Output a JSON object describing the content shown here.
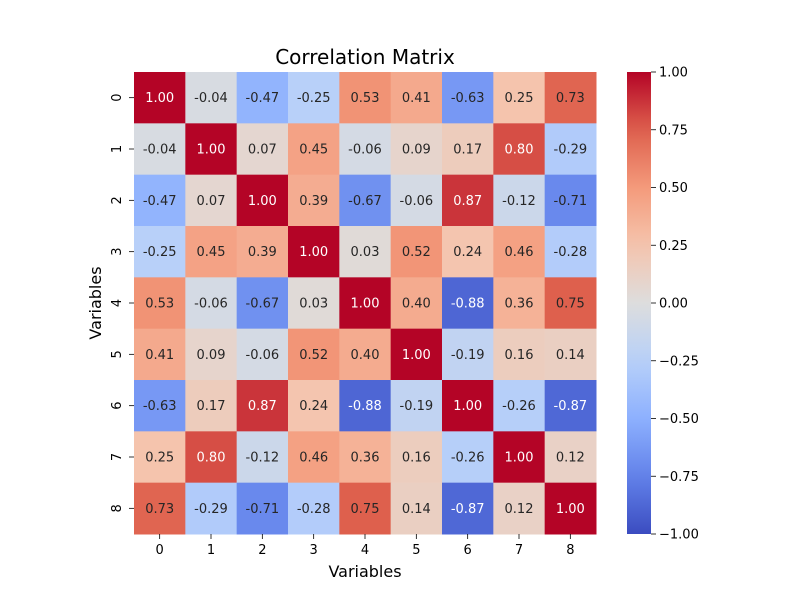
{
  "chart_data": {
    "type": "heatmap",
    "title": "Correlation Matrix",
    "xlabel": "Variables",
    "ylabel": "Variables",
    "x_categories": [
      "0",
      "1",
      "2",
      "3",
      "4",
      "5",
      "6",
      "7",
      "8"
    ],
    "y_categories": [
      "0",
      "1",
      "2",
      "3",
      "4",
      "5",
      "6",
      "7",
      "8"
    ],
    "values": [
      [
        1.0,
        -0.04,
        -0.47,
        -0.25,
        0.53,
        0.41,
        -0.63,
        0.25,
        0.73
      ],
      [
        -0.04,
        1.0,
        0.07,
        0.45,
        -0.06,
        0.09,
        0.17,
        0.8,
        -0.29
      ],
      [
        -0.47,
        0.07,
        1.0,
        0.39,
        -0.67,
        -0.06,
        0.87,
        -0.12,
        -0.71
      ],
      [
        -0.25,
        0.45,
        0.39,
        1.0,
        0.03,
        0.52,
        0.24,
        0.46,
        -0.28
      ],
      [
        0.53,
        -0.06,
        -0.67,
        0.03,
        1.0,
        0.4,
        -0.88,
        0.36,
        0.75
      ],
      [
        0.41,
        0.09,
        -0.06,
        0.52,
        0.4,
        1.0,
        -0.19,
        0.16,
        0.14
      ],
      [
        -0.63,
        0.17,
        0.87,
        0.24,
        -0.88,
        -0.19,
        1.0,
        -0.26,
        -0.87
      ],
      [
        0.25,
        0.8,
        -0.12,
        0.46,
        0.36,
        0.16,
        -0.26,
        1.0,
        0.12
      ],
      [
        0.73,
        -0.29,
        -0.71,
        -0.28,
        0.75,
        0.14,
        -0.87,
        0.12,
        1.0
      ]
    ],
    "value_range": [
      -1.0,
      1.0
    ],
    "colormap": "coolwarm",
    "colorbar_ticks": [
      "1.00",
      "0.75",
      "0.50",
      "0.25",
      "0.00",
      "−0.25",
      "−0.50",
      "−0.75",
      "−1.00"
    ],
    "colorbar_values": [
      1.0,
      0.75,
      0.5,
      0.25,
      0.0,
      -0.25,
      -0.5,
      -0.75,
      -1.0
    ],
    "annotation_format": "0.00",
    "grid": false,
    "legend": "colorbar-right"
  }
}
